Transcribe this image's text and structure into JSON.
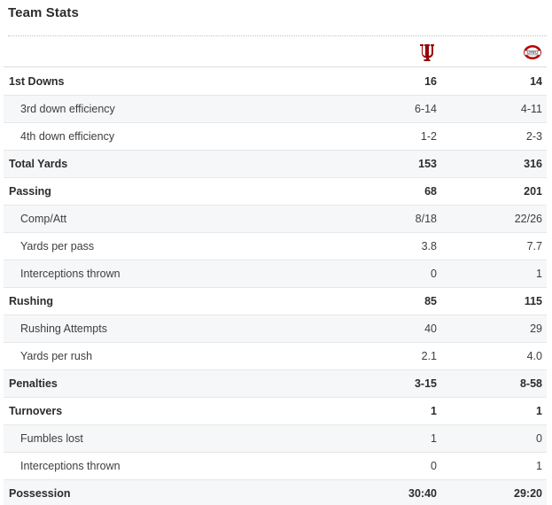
{
  "title": "Team Stats",
  "teams": {
    "home_logo_icon": "indiana-logo-icon",
    "away_logo_icon": "ohio-state-logo-icon",
    "home_color": "#990000",
    "away_color": "#bb0000"
  },
  "rows": [
    {
      "label": "1st Downs",
      "a": "16",
      "b": "14",
      "type": "main"
    },
    {
      "label": "3rd down efficiency",
      "a": "6-14",
      "b": "4-11",
      "type": "sub"
    },
    {
      "label": "4th down efficiency",
      "a": "1-2",
      "b": "2-3",
      "type": "sub"
    },
    {
      "label": "Total Yards",
      "a": "153",
      "b": "316",
      "type": "main"
    },
    {
      "label": "Passing",
      "a": "68",
      "b": "201",
      "type": "main"
    },
    {
      "label": "Comp/Att",
      "a": "8/18",
      "b": "22/26",
      "type": "sub"
    },
    {
      "label": "Yards per pass",
      "a": "3.8",
      "b": "7.7",
      "type": "sub"
    },
    {
      "label": "Interceptions thrown",
      "a": "0",
      "b": "1",
      "type": "sub"
    },
    {
      "label": "Rushing",
      "a": "85",
      "b": "115",
      "type": "main"
    },
    {
      "label": "Rushing Attempts",
      "a": "40",
      "b": "29",
      "type": "sub"
    },
    {
      "label": "Yards per rush",
      "a": "2.1",
      "b": "4.0",
      "type": "sub"
    },
    {
      "label": "Penalties",
      "a": "3-15",
      "b": "8-58",
      "type": "main"
    },
    {
      "label": "Turnovers",
      "a": "1",
      "b": "1",
      "type": "main"
    },
    {
      "label": "Fumbles lost",
      "a": "1",
      "b": "0",
      "type": "sub"
    },
    {
      "label": "Interceptions thrown",
      "a": "0",
      "b": "1",
      "type": "sub"
    },
    {
      "label": "Possession",
      "a": "30:40",
      "b": "29:20",
      "type": "main"
    }
  ]
}
